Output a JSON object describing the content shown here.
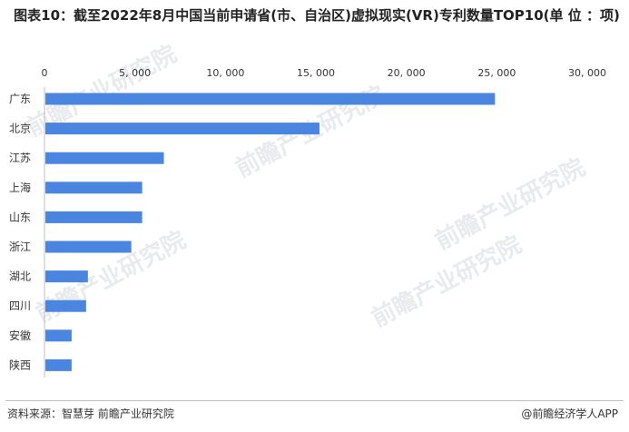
{
  "title": "图表10：截至2022年8月中国当前申请省(市、自治区)虚拟现实(VR)专利数量TOP10(单 位 ：项)",
  "source": "资料来源：智慧芽 前瞻产业研究院",
  "brand": "@前瞻经济学人APP",
  "watermark": "前瞻产业研究院",
  "colors": {
    "bar": "#4a86e0",
    "grid": "#d9d9d9",
    "text": "#333333"
  },
  "chart_data": {
    "type": "bar",
    "orientation": "horizontal",
    "categories": [
      "广东",
      "北京",
      "江苏",
      "上海",
      "山东",
      "浙江",
      "湖北",
      "四川",
      "安徽",
      "陕西"
    ],
    "values": [
      24900,
      15200,
      6600,
      5400,
      5400,
      4800,
      2400,
      2300,
      1500,
      1500
    ],
    "xlim": [
      0,
      30000
    ],
    "xticks": [
      0,
      5000,
      10000,
      15000,
      20000,
      25000,
      30000
    ],
    "xtick_labels": [
      "0",
      "5, 000",
      "10, 000",
      "15, 000",
      "20, 000",
      "25, 000",
      "30, 000"
    ],
    "axis_position": "top",
    "grid": false
  }
}
